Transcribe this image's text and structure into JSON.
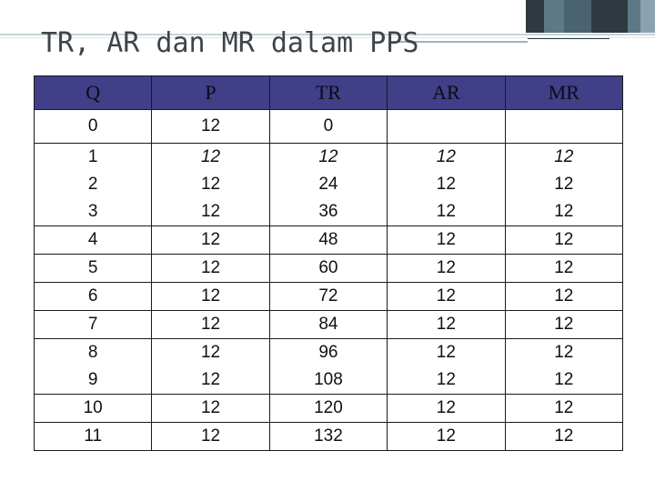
{
  "slide": {
    "title": "TR, AR dan MR dalam PPS"
  },
  "table": {
    "headers": [
      "Q",
      "P",
      "TR",
      "AR",
      "MR"
    ],
    "rows": [
      [
        "0",
        "12",
        "0",
        "",
        ""
      ],
      [
        "1",
        "12",
        "12",
        "12",
        "12"
      ],
      [
        "2",
        "12",
        "24",
        "12",
        "12"
      ],
      [
        "3",
        "12",
        "36",
        "12",
        "12"
      ],
      [
        "4",
        "12",
        "48",
        "12",
        "12"
      ],
      [
        "5",
        "12",
        "60",
        "12",
        "12"
      ],
      [
        "6",
        "12",
        "72",
        "12",
        "12"
      ],
      [
        "7",
        "12",
        "84",
        "12",
        "12"
      ],
      [
        "8",
        "12",
        "96",
        "12",
        "12"
      ],
      [
        "9",
        "12",
        "108",
        "12",
        "12"
      ],
      [
        "10",
        "12",
        "120",
        "12",
        "12"
      ],
      [
        "11",
        "12",
        "132",
        "12",
        "12"
      ]
    ]
  },
  "colors": {
    "header_bg": "#413f87",
    "title_text": "#3f4446",
    "accent_dark": "#2e3a40",
    "accent_light": "#9fb4c2"
  }
}
